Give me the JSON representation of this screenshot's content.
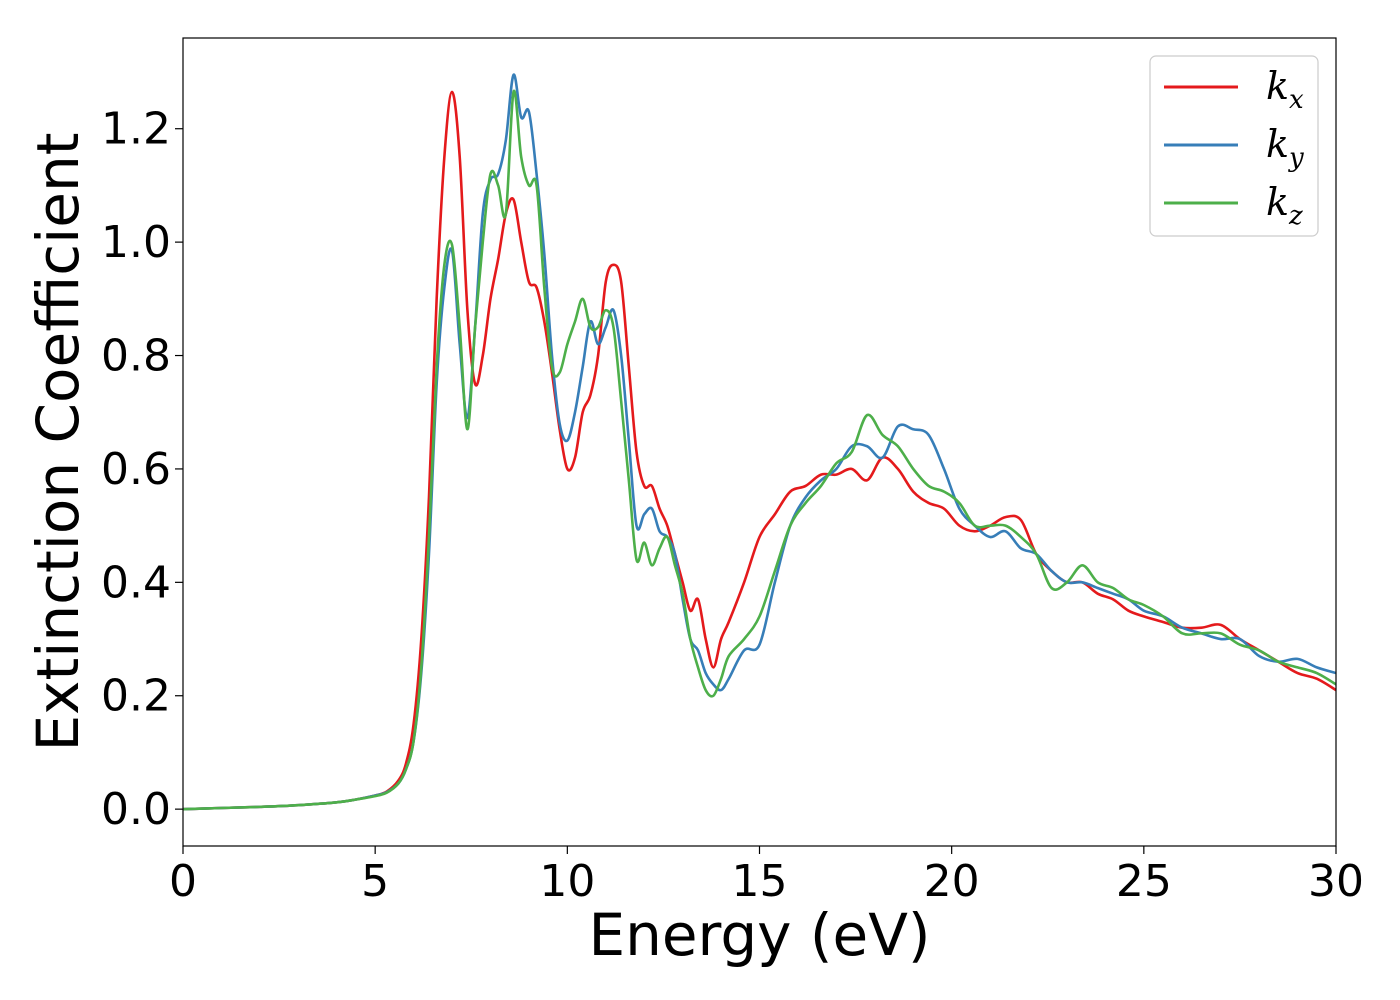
{
  "chart_data": {
    "type": "line",
    "title": "",
    "xlabel": "Energy (eV)",
    "ylabel": "Extinction Coefficient",
    "xlim": [
      0,
      30
    ],
    "ylim": [
      -0.065,
      1.36
    ],
    "xticks": [
      0,
      5,
      10,
      15,
      20,
      25,
      30
    ],
    "xtick_labels": [
      "0",
      "5",
      "10",
      "15",
      "20",
      "25",
      "30"
    ],
    "yticks": [
      0.0,
      0.2,
      0.4,
      0.6,
      0.8,
      1.0,
      1.2
    ],
    "ytick_labels": [
      "0.0",
      "0.2",
      "0.4",
      "0.6",
      "0.8",
      "1.0",
      "1.2"
    ],
    "grid": false,
    "legend_position": "top-right",
    "series": [
      {
        "name": "k_x",
        "label_main": "k",
        "label_sub": "x",
        "color": "#e41a1c",
        "x": [
          0,
          1,
          2,
          3,
          4,
          4.5,
          5,
          5.3,
          5.6,
          5.8,
          6.0,
          6.2,
          6.4,
          6.6,
          6.8,
          7.0,
          7.2,
          7.4,
          7.6,
          7.8,
          8.0,
          8.2,
          8.4,
          8.6,
          8.8,
          9.0,
          9.2,
          9.4,
          9.6,
          9.8,
          10.0,
          10.2,
          10.4,
          10.6,
          10.8,
          11.0,
          11.2,
          11.4,
          11.6,
          11.8,
          12.0,
          12.2,
          12.4,
          12.6,
          12.8,
          13.0,
          13.2,
          13.4,
          13.6,
          13.8,
          14.0,
          14.2,
          14.6,
          15.0,
          15.4,
          15.8,
          16.2,
          16.6,
          17.0,
          17.4,
          17.8,
          18.2,
          18.6,
          19.0,
          19.4,
          19.8,
          20.2,
          20.6,
          21.0,
          21.4,
          21.8,
          22.2,
          22.6,
          23.0,
          23.4,
          23.8,
          24.2,
          24.6,
          25.0,
          25.5,
          26.0,
          26.5,
          27.0,
          27.5,
          28.0,
          28.5,
          29.0,
          29.5,
          30.0
        ],
        "y": [
          0.0,
          0.002,
          0.004,
          0.007,
          0.012,
          0.017,
          0.024,
          0.031,
          0.05,
          0.08,
          0.15,
          0.3,
          0.55,
          0.9,
          1.15,
          1.265,
          1.15,
          0.88,
          0.75,
          0.8,
          0.9,
          0.97,
          1.05,
          1.075,
          1.0,
          0.93,
          0.92,
          0.86,
          0.77,
          0.67,
          0.6,
          0.62,
          0.7,
          0.73,
          0.8,
          0.93,
          0.96,
          0.93,
          0.78,
          0.63,
          0.57,
          0.57,
          0.53,
          0.5,
          0.45,
          0.4,
          0.35,
          0.37,
          0.3,
          0.25,
          0.3,
          0.33,
          0.4,
          0.48,
          0.52,
          0.56,
          0.57,
          0.59,
          0.59,
          0.6,
          0.58,
          0.62,
          0.6,
          0.56,
          0.54,
          0.53,
          0.5,
          0.49,
          0.5,
          0.515,
          0.51,
          0.45,
          0.42,
          0.4,
          0.4,
          0.38,
          0.37,
          0.35,
          0.34,
          0.33,
          0.32,
          0.32,
          0.325,
          0.3,
          0.28,
          0.26,
          0.24,
          0.23,
          0.21
        ]
      },
      {
        "name": "k_y",
        "label_main": "k",
        "label_sub": "y",
        "color": "#377eb8",
        "x": [
          0,
          1,
          2,
          3,
          4,
          4.5,
          5,
          5.3,
          5.6,
          5.8,
          6.0,
          6.2,
          6.4,
          6.6,
          6.8,
          7.0,
          7.2,
          7.4,
          7.6,
          7.8,
          8.0,
          8.2,
          8.4,
          8.6,
          8.8,
          9.0,
          9.2,
          9.4,
          9.6,
          9.8,
          10.0,
          10.2,
          10.4,
          10.6,
          10.8,
          11.0,
          11.2,
          11.4,
          11.6,
          11.8,
          12.0,
          12.2,
          12.4,
          12.6,
          12.8,
          13.0,
          13.2,
          13.4,
          13.6,
          13.8,
          14.0,
          14.2,
          14.6,
          15.0,
          15.4,
          15.8,
          16.2,
          16.6,
          17.0,
          17.4,
          17.8,
          18.2,
          18.6,
          19.0,
          19.4,
          19.8,
          20.2,
          20.6,
          21.0,
          21.4,
          21.8,
          22.2,
          22.6,
          23.0,
          23.4,
          23.8,
          24.2,
          24.6,
          25.0,
          25.5,
          26.0,
          26.5,
          27.0,
          27.5,
          28.0,
          28.5,
          29.0,
          29.5,
          30.0
        ],
        "y": [
          0.0,
          0.002,
          0.004,
          0.007,
          0.012,
          0.017,
          0.024,
          0.03,
          0.045,
          0.07,
          0.12,
          0.24,
          0.45,
          0.75,
          0.92,
          0.985,
          0.82,
          0.69,
          0.85,
          1.05,
          1.11,
          1.12,
          1.18,
          1.295,
          1.22,
          1.23,
          1.12,
          0.98,
          0.8,
          0.68,
          0.65,
          0.7,
          0.78,
          0.86,
          0.82,
          0.85,
          0.88,
          0.8,
          0.65,
          0.5,
          0.52,
          0.53,
          0.49,
          0.48,
          0.45,
          0.37,
          0.3,
          0.28,
          0.24,
          0.22,
          0.21,
          0.23,
          0.28,
          0.29,
          0.4,
          0.5,
          0.55,
          0.58,
          0.6,
          0.64,
          0.64,
          0.62,
          0.675,
          0.67,
          0.66,
          0.6,
          0.53,
          0.5,
          0.48,
          0.49,
          0.46,
          0.45,
          0.42,
          0.4,
          0.4,
          0.39,
          0.38,
          0.37,
          0.35,
          0.34,
          0.32,
          0.31,
          0.3,
          0.3,
          0.27,
          0.26,
          0.265,
          0.25,
          0.24
        ]
      },
      {
        "name": "k_z",
        "label_main": "k",
        "label_sub": "z",
        "color": "#4daf4a",
        "x": [
          0,
          1,
          2,
          3,
          4,
          4.5,
          5,
          5.3,
          5.6,
          5.8,
          6.0,
          6.2,
          6.4,
          6.6,
          6.8,
          7.0,
          7.2,
          7.4,
          7.6,
          7.8,
          8.0,
          8.2,
          8.4,
          8.6,
          8.8,
          9.0,
          9.2,
          9.4,
          9.6,
          9.8,
          10.0,
          10.2,
          10.4,
          10.6,
          10.8,
          11.0,
          11.2,
          11.4,
          11.6,
          11.8,
          12.0,
          12.2,
          12.4,
          12.6,
          12.8,
          13.0,
          13.2,
          13.4,
          13.6,
          13.8,
          14.0,
          14.2,
          14.6,
          15.0,
          15.4,
          15.8,
          16.2,
          16.6,
          17.0,
          17.4,
          17.8,
          18.2,
          18.6,
          19.0,
          19.4,
          19.8,
          20.2,
          20.6,
          21.0,
          21.4,
          21.8,
          22.2,
          22.6,
          23.0,
          23.4,
          23.8,
          24.2,
          24.6,
          25.0,
          25.5,
          26.0,
          26.5,
          27.0,
          27.5,
          28.0,
          28.5,
          29.0,
          29.5,
          30.0
        ],
        "y": [
          0.0,
          0.002,
          0.004,
          0.007,
          0.012,
          0.017,
          0.023,
          0.029,
          0.045,
          0.07,
          0.12,
          0.25,
          0.48,
          0.78,
          0.96,
          0.995,
          0.85,
          0.67,
          0.85,
          1.0,
          1.12,
          1.1,
          1.05,
          1.265,
          1.15,
          1.1,
          1.1,
          0.92,
          0.78,
          0.77,
          0.82,
          0.86,
          0.9,
          0.85,
          0.85,
          0.88,
          0.85,
          0.72,
          0.58,
          0.44,
          0.47,
          0.43,
          0.46,
          0.48,
          0.43,
          0.38,
          0.3,
          0.25,
          0.21,
          0.2,
          0.23,
          0.27,
          0.3,
          0.34,
          0.42,
          0.5,
          0.54,
          0.57,
          0.61,
          0.63,
          0.695,
          0.66,
          0.64,
          0.6,
          0.57,
          0.56,
          0.54,
          0.5,
          0.5,
          0.5,
          0.48,
          0.45,
          0.39,
          0.4,
          0.43,
          0.4,
          0.39,
          0.37,
          0.36,
          0.34,
          0.31,
          0.31,
          0.31,
          0.29,
          0.28,
          0.26,
          0.25,
          0.24,
          0.22
        ]
      }
    ]
  }
}
